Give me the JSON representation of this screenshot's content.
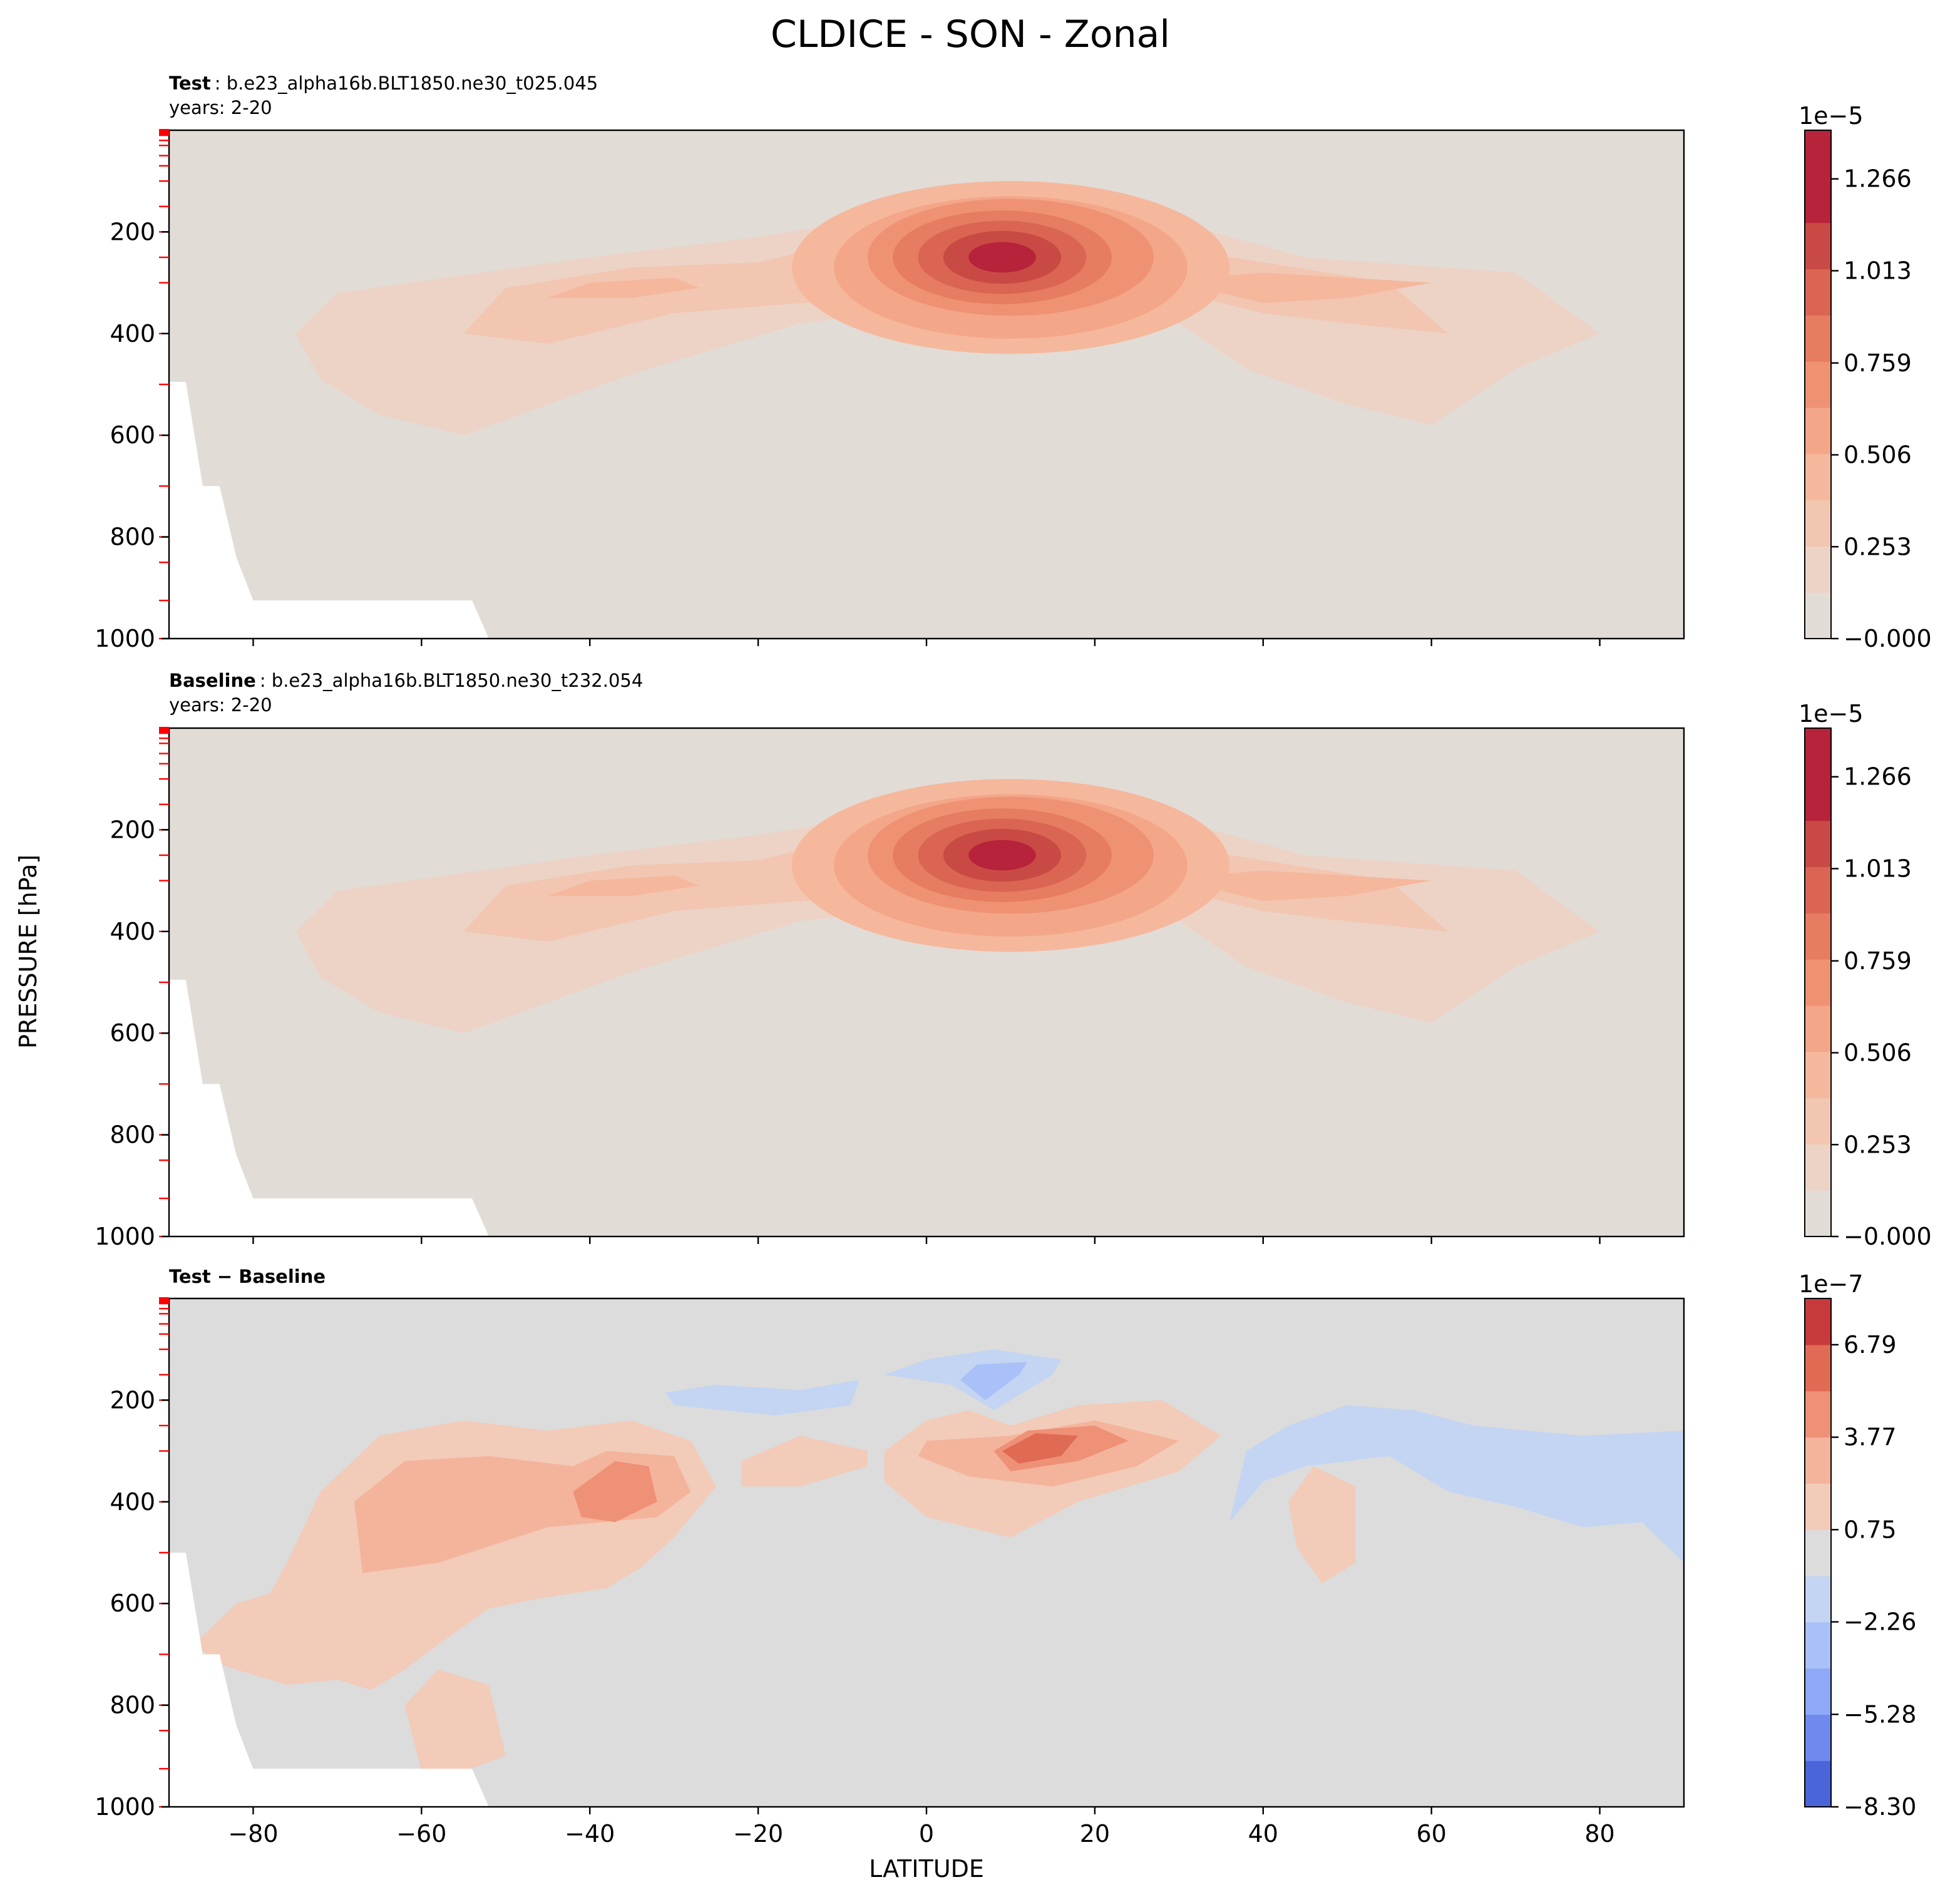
{
  "figure_title": "CLDICE - SON - Zonal",
  "ylabel": "PRESSURE [hPa]",
  "xlabel": "LATITUDE",
  "colors": {
    "background": "#e2dcd7",
    "diff_background": "#dcdcdc",
    "warm_scale": [
      "#e2dcd7",
      "#ecd3c6",
      "#f2c6b1",
      "#f5b89d",
      "#f4a688",
      "#ef9274",
      "#e67c62",
      "#da6552",
      "#c94a44",
      "#b7233a"
    ],
    "diff_scale": {
      "blue": [
        "#4a65d9",
        "#6f89ee",
        "#8fa9f8",
        "#a9c1f8",
        "#c3d5f2"
      ],
      "red": [
        "#f2cbb9",
        "#f4b49b",
        "#ee9177",
        "#e06b55",
        "#c73a3c"
      ]
    },
    "pressure_tick_marks": "#ff0000"
  },
  "chart_data": [
    {
      "type": "contour",
      "title_label": "Test",
      "title_value": ": b.e23_alpha16b.BLT1850.ne30_t025.045",
      "years": "years: 2-20",
      "xlim": [
        -90,
        90
      ],
      "ylim": [
        1000,
        0
      ],
      "yticks": [
        200,
        400,
        600,
        800,
        1000
      ],
      "colorbar": {
        "multiplier": "1e−5",
        "ticks": [
          "1.266",
          "1.013",
          "0.759",
          "0.506",
          "0.253",
          "−0.000"
        ],
        "tick_values": [
          1.266,
          1.013,
          0.759,
          0.506,
          0.253,
          0
        ],
        "min": 0,
        "max": 1.4
      },
      "features": [
        {
          "lat": 9,
          "p": 250,
          "max_level": 9,
          "note": "tropical upper-tropospheric ice maximum"
        },
        {
          "lat": -37,
          "p": 330,
          "max_level": 3
        },
        {
          "lat": 45,
          "p": 320,
          "max_level": 3
        }
      ],
      "masked_region": {
        "lat_max": -54,
        "p_min": 925
      }
    },
    {
      "type": "contour",
      "title_label": "Baseline",
      "title_value": ": b.e23_alpha16b.BLT1850.ne30_t232.054",
      "years": "years: 2-20",
      "xlim": [
        -90,
        90
      ],
      "ylim": [
        1000,
        0
      ],
      "yticks": [
        200,
        400,
        600,
        800,
        1000
      ],
      "colorbar": {
        "multiplier": "1e−5",
        "ticks": [
          "1.266",
          "1.013",
          "0.759",
          "0.506",
          "0.253",
          "−0.000"
        ],
        "tick_values": [
          1.266,
          1.013,
          0.759,
          0.506,
          0.253,
          0
        ],
        "min": 0,
        "max": 1.4
      },
      "features": [
        {
          "lat": 9,
          "p": 250,
          "max_level": 9
        },
        {
          "lat": -37,
          "p": 330,
          "max_level": 3
        },
        {
          "lat": 45,
          "p": 320,
          "max_level": 3
        }
      ],
      "masked_region": {
        "lat_max": -54,
        "p_min": 925
      }
    },
    {
      "type": "contour",
      "title_label": "Test − Baseline",
      "xlim": [
        -90,
        90
      ],
      "ylim": [
        1000,
        0
      ],
      "xticks": [
        -80,
        -60,
        -40,
        -20,
        0,
        20,
        40,
        60,
        80
      ],
      "yticks": [
        200,
        400,
        600,
        800,
        1000
      ],
      "colorbar": {
        "multiplier": "1e−7",
        "ticks": [
          "6.79",
          "3.77",
          "0.75",
          "−2.26",
          "−5.28",
          "−8.30"
        ],
        "tick_values": [
          6.79,
          3.77,
          0.75,
          -2.26,
          -5.28,
          -8.3
        ],
        "min": -8.3,
        "max": 8.3
      },
      "features": [
        {
          "lat": 12,
          "p": 300,
          "sign": "positive",
          "note": "largest positive difference"
        },
        {
          "lat": 7,
          "p": 170,
          "sign": "negative",
          "note": "largest negative difference"
        },
        {
          "lat": -37,
          "p": 400,
          "sign": "positive"
        },
        {
          "lat": -60,
          "p": 450,
          "sign": "positive"
        },
        {
          "lat": 65,
          "p": 300,
          "sign": "negative"
        }
      ],
      "masked_region": {
        "lat_max": -54,
        "p_min": 925
      }
    }
  ]
}
